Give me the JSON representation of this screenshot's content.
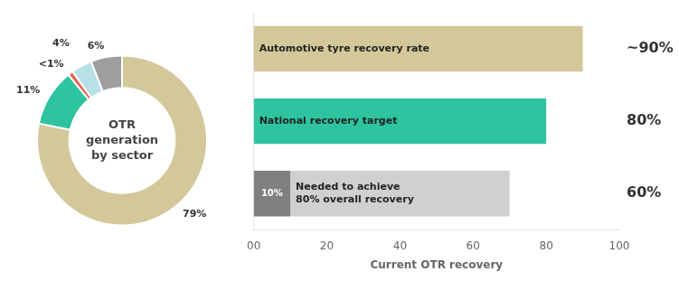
{
  "chart_data": [
    {
      "type": "donut",
      "annotations": [
        "OTR",
        "generation",
        "by sector"
      ],
      "values": [
        79,
        11,
        1,
        4,
        6
      ],
      "value_labels": [
        "79%",
        "11%",
        "<1%",
        "4%",
        "6%"
      ],
      "colors": [
        "#d4c89a",
        "#2ec4a0",
        "#e8604c",
        "#b8e0e8",
        "#9e9e9e"
      ],
      "data_labels": true
    },
    {
      "type": "bar",
      "orientation": "horizontal",
      "stacked": true,
      "categories": [
        "Automotive tyre recovery rate",
        "National recovery target",
        "Needed to achieve\n80% overall recovery"
      ],
      "series": [
        {
          "color": "#808080",
          "values": [
            null,
            null,
            10
          ],
          "value_labels": [
            null,
            null,
            "10%"
          ]
        },
        {
          "colors": [
            "#d4c89a",
            "#2ec4a0",
            "#d0d0d0"
          ],
          "values": [
            90,
            80,
            60
          ],
          "value_labels": [
            "~90%",
            "80%",
            "60%"
          ]
        }
      ],
      "xlabel": "Current OTR recovery",
      "xlim": [
        0,
        100
      ],
      "xticks": [
        {
          "value": 0,
          "label": "00"
        },
        20,
        40,
        60,
        80,
        100
      ],
      "grid": false,
      "data_labels": true,
      "tick_labels": "x"
    }
  ]
}
